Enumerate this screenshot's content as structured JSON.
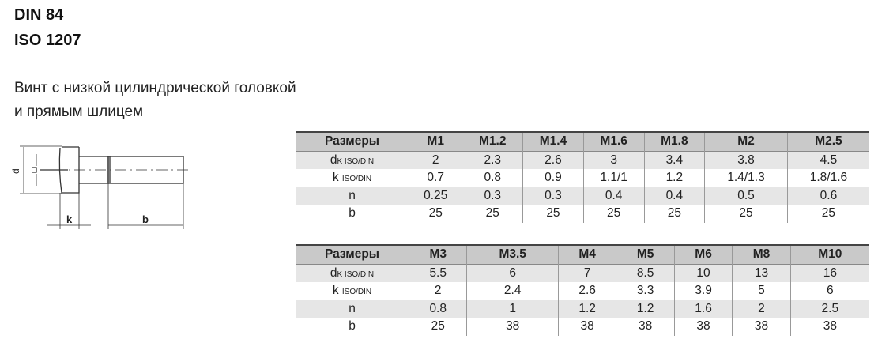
{
  "title": {
    "line1": "DIN 84",
    "line2": "ISO 1207"
  },
  "description": {
    "line1": "Винт с низкой цилиндрической головкой",
    "line2": "и прямым шлицем"
  },
  "drawing": {
    "labels": {
      "dk": "d",
      "dk_sub": "k",
      "k": "k",
      "b": "b"
    }
  },
  "row_labels": {
    "header": "Размеры",
    "dk": "d",
    "dk_sub": "k ISO/DIN",
    "k": "k",
    "k_sub": "ISO/DIN",
    "n": "n",
    "b": "b"
  },
  "tables": [
    {
      "sizes": [
        "M1",
        "M1.2",
        "M1.4",
        "M1.6",
        "M1.8",
        "M2",
        "M2.5"
      ],
      "dk": [
        "2",
        "2.3",
        "2.6",
        "3",
        "3.4",
        "3.8",
        "4.5"
      ],
      "k": [
        "0.7",
        "0.8",
        "0.9",
        "1.1/1",
        "1.2",
        "1.4/1.3",
        "1.8/1.6"
      ],
      "n": [
        "0.25",
        "0.3",
        "0.3",
        "0.4",
        "0.4",
        "0.5",
        "0.6"
      ],
      "b": [
        "25",
        "25",
        "25",
        "25",
        "25",
        "25",
        "25"
      ]
    },
    {
      "sizes": [
        "M3",
        "M3.5",
        "M4",
        "M5",
        "M6",
        "M8",
        "M10"
      ],
      "dk": [
        "5.5",
        "6",
        "7",
        "8.5",
        "10",
        "13",
        "16"
      ],
      "k": [
        "2",
        "2.4",
        "2.6",
        "3.3",
        "3.9",
        "5",
        "6"
      ],
      "n": [
        "0.8",
        "1",
        "1.2",
        "1.2",
        "1.6",
        "2",
        "2.5"
      ],
      "b": [
        "25",
        "38",
        "38",
        "38",
        "38",
        "38",
        "38"
      ]
    }
  ]
}
